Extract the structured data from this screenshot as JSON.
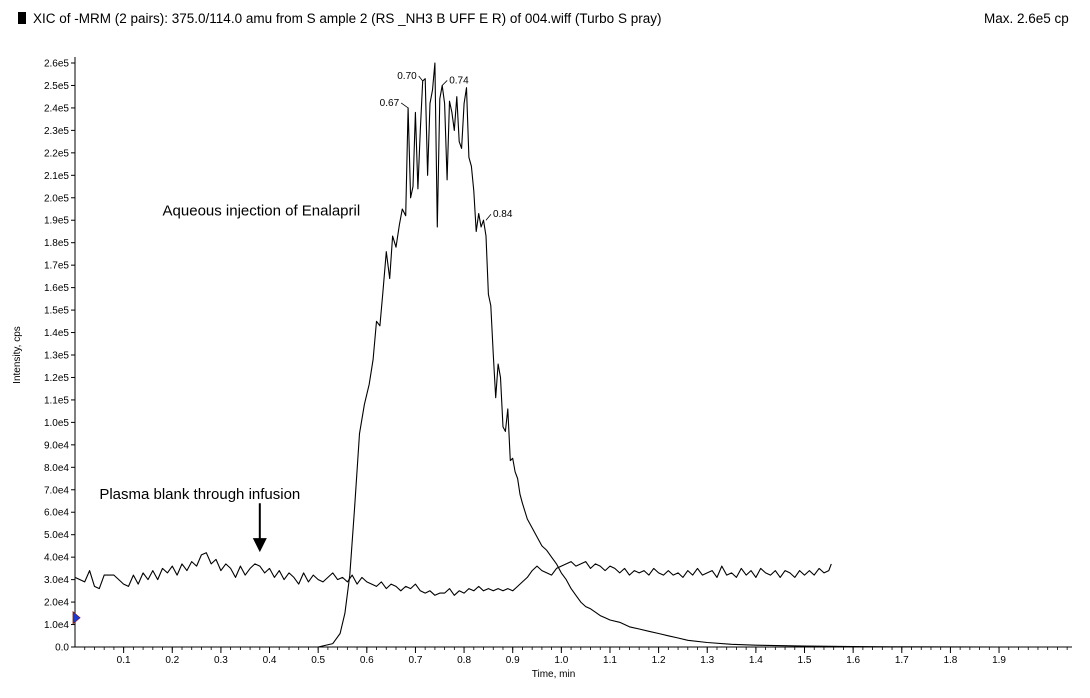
{
  "header": {
    "title": "XIC of -MRM (2 pairs): 375.0/114.0 amu from S ample 2 (RS _NH3 B UFF E R) of 004.wiff (Turbo S pray)",
    "max_label": "Max. 2.6e5 cp"
  },
  "chart_data": {
    "type": "line",
    "title": "XIC of -MRM (2 pairs): 375.0/114.0 amu from S ample 2 (RS _NH3 B UFF E R) of 004.wiff (Turbo S pray)",
    "xlabel": "Time, min",
    "ylabel": "Intensity, cps",
    "xlim": [
      0,
      2.05
    ],
    "ylim": [
      0,
      260000
    ],
    "grid": false,
    "x_ticks": [
      "0.1",
      "0.2",
      "0.3",
      "0.4",
      "0.5",
      "0.6",
      "0.7",
      "0.8",
      "0.9",
      "1.0",
      "1.1",
      "1.2",
      "1.3",
      "1.4",
      "1.5",
      "1.6",
      "1.7",
      "1.8",
      "1.9"
    ],
    "y_ticks": [
      "0.0",
      "1.0e4",
      "2.0e4",
      "3.0e4",
      "4.0e4",
      "5.0e4",
      "6.0e4",
      "7.0e4",
      "8.0e4",
      "9.0e4",
      "1.0e5",
      "1.1e5",
      "1.2e5",
      "1.3e5",
      "1.4e5",
      "1.5e5",
      "1.6e5",
      "1.7e5",
      "1.8e5",
      "1.9e5",
      "2.0e5",
      "2.1e5",
      "2.2e5",
      "2.3e5",
      "2.4e5",
      "2.5e5",
      "2.6e5"
    ],
    "series": [
      {
        "points": [
          [
            0,
            0
          ],
          [
            0.3,
            0
          ],
          [
            0.5,
            0
          ],
          [
            0.53,
            1500
          ],
          [
            0.545,
            6000
          ],
          [
            0.555,
            15000
          ],
          [
            0.565,
            32000
          ],
          [
            0.575,
            62000
          ],
          [
            0.585,
            95000
          ],
          [
            0.595,
            108000
          ],
          [
            0.605,
            117000
          ],
          [
            0.613,
            128000
          ],
          [
            0.62,
            145000
          ],
          [
            0.627,
            143000
          ],
          [
            0.633,
            158000
          ],
          [
            0.64,
            176000
          ],
          [
            0.647,
            164000
          ],
          [
            0.653,
            183000
          ],
          [
            0.66,
            178000
          ],
          [
            0.667,
            188000
          ],
          [
            0.673,
            195000
          ],
          [
            0.68,
            192000
          ],
          [
            0.685,
            240000
          ],
          [
            0.69,
            200000
          ],
          [
            0.695,
            205000
          ],
          [
            0.7,
            238000
          ],
          [
            0.705,
            204000
          ],
          [
            0.71,
            230000
          ],
          [
            0.715,
            252000
          ],
          [
            0.72,
            253000
          ],
          [
            0.725,
            210000
          ],
          [
            0.73,
            242000
          ],
          [
            0.735,
            248000
          ],
          [
            0.74,
            260000
          ],
          [
            0.745,
            187000
          ],
          [
            0.75,
            244000
          ],
          [
            0.755,
            250000
          ],
          [
            0.76,
            242000
          ],
          [
            0.765,
            208000
          ],
          [
            0.77,
            243000
          ],
          [
            0.775,
            238000
          ],
          [
            0.78,
            230000
          ],
          [
            0.785,
            245000
          ],
          [
            0.79,
            225000
          ],
          [
            0.795,
            222000
          ],
          [
            0.8,
            242000
          ],
          [
            0.805,
            249000
          ],
          [
            0.81,
            218000
          ],
          [
            0.815,
            214000
          ],
          [
            0.82,
            203000
          ],
          [
            0.825,
            185000
          ],
          [
            0.83,
            193000
          ],
          [
            0.835,
            187000
          ],
          [
            0.84,
            190000
          ],
          [
            0.845,
            183000
          ],
          [
            0.85,
            157000
          ],
          [
            0.855,
            152000
          ],
          [
            0.86,
            130000
          ],
          [
            0.865,
            111000
          ],
          [
            0.87,
            126000
          ],
          [
            0.875,
            120000
          ],
          [
            0.88,
            98000
          ],
          [
            0.885,
            96000
          ],
          [
            0.89,
            106000
          ],
          [
            0.895,
            83000
          ],
          [
            0.9,
            84000
          ],
          [
            0.905,
            78000
          ],
          [
            0.91,
            75000
          ],
          [
            0.915,
            68000
          ],
          [
            0.92,
            64000
          ],
          [
            0.93,
            57000
          ],
          [
            0.94,
            53000
          ],
          [
            0.95,
            49000
          ],
          [
            0.96,
            45000
          ],
          [
            0.97,
            43000
          ],
          [
            0.98,
            40000
          ],
          [
            0.99,
            37000
          ],
          [
            1.0,
            33000
          ],
          [
            1.01,
            30000
          ],
          [
            1.02,
            26000
          ],
          [
            1.03,
            23000
          ],
          [
            1.04,
            20000
          ],
          [
            1.05,
            18000
          ],
          [
            1.06,
            17000
          ],
          [
            1.07,
            15500
          ],
          [
            1.08,
            14000
          ],
          [
            1.09,
            13000
          ],
          [
            1.1,
            12000
          ],
          [
            1.12,
            11000
          ],
          [
            1.14,
            9000
          ],
          [
            1.16,
            8000
          ],
          [
            1.18,
            7000
          ],
          [
            1.2,
            6000
          ],
          [
            1.22,
            5000
          ],
          [
            1.24,
            4000
          ],
          [
            1.26,
            3000
          ],
          [
            1.3,
            2000
          ],
          [
            1.35,
            1200
          ],
          [
            1.4,
            800
          ],
          [
            1.5,
            400
          ],
          [
            1.6,
            200
          ],
          [
            1.7,
            100
          ],
          [
            1.8,
            50
          ],
          [
            1.9,
            0
          ],
          [
            2.0,
            0
          ]
        ]
      },
      {
        "points": [
          [
            0,
            31000
          ],
          [
            0.01,
            30000
          ],
          [
            0.02,
            29000
          ],
          [
            0.03,
            34000
          ],
          [
            0.04,
            27000
          ],
          [
            0.05,
            26000
          ],
          [
            0.06,
            32000
          ],
          [
            0.08,
            32000
          ],
          [
            0.1,
            28000
          ],
          [
            0.11,
            27000
          ],
          [
            0.12,
            32000
          ],
          [
            0.13,
            28000
          ],
          [
            0.14,
            33000
          ],
          [
            0.15,
            30000
          ],
          [
            0.16,
            34000
          ],
          [
            0.17,
            30000
          ],
          [
            0.18,
            35000
          ],
          [
            0.19,
            33000
          ],
          [
            0.2,
            36000
          ],
          [
            0.21,
            32000
          ],
          [
            0.22,
            37000
          ],
          [
            0.23,
            34000
          ],
          [
            0.24,
            38000
          ],
          [
            0.25,
            36000
          ],
          [
            0.26,
            41000
          ],
          [
            0.27,
            42000
          ],
          [
            0.28,
            37000
          ],
          [
            0.29,
            39000
          ],
          [
            0.3,
            34000
          ],
          [
            0.31,
            37000
          ],
          [
            0.32,
            35000
          ],
          [
            0.33,
            31000
          ],
          [
            0.34,
            36000
          ],
          [
            0.35,
            32000
          ],
          [
            0.36,
            35000
          ],
          [
            0.37,
            37000
          ],
          [
            0.38,
            36000
          ],
          [
            0.39,
            33000
          ],
          [
            0.4,
            35000
          ],
          [
            0.41,
            31000
          ],
          [
            0.42,
            34000
          ],
          [
            0.43,
            30000
          ],
          [
            0.44,
            33000
          ],
          [
            0.45,
            31000
          ],
          [
            0.46,
            28000
          ],
          [
            0.47,
            33000
          ],
          [
            0.48,
            29000
          ],
          [
            0.49,
            32000
          ],
          [
            0.5,
            30000
          ],
          [
            0.51,
            29000
          ],
          [
            0.52,
            31000
          ],
          [
            0.53,
            33000
          ],
          [
            0.54,
            30000
          ],
          [
            0.55,
            31000
          ],
          [
            0.56,
            29000
          ],
          [
            0.57,
            32000
          ],
          [
            0.58,
            28000
          ],
          [
            0.59,
            31000
          ],
          [
            0.6,
            29000
          ],
          [
            0.61,
            28000
          ],
          [
            0.62,
            27000
          ],
          [
            0.63,
            29000
          ],
          [
            0.64,
            26000
          ],
          [
            0.65,
            28000
          ],
          [
            0.66,
            27000
          ],
          [
            0.67,
            25000
          ],
          [
            0.68,
            27000
          ],
          [
            0.69,
            26000
          ],
          [
            0.7,
            28000
          ],
          [
            0.71,
            25000
          ],
          [
            0.72,
            24000
          ],
          [
            0.73,
            25000
          ],
          [
            0.74,
            23000
          ],
          [
            0.75,
            24000
          ],
          [
            0.76,
            24000
          ],
          [
            0.77,
            26000
          ],
          [
            0.78,
            23000
          ],
          [
            0.79,
            25000
          ],
          [
            0.8,
            24000
          ],
          [
            0.81,
            26000
          ],
          [
            0.82,
            25000
          ],
          [
            0.83,
            27000
          ],
          [
            0.84,
            25000
          ],
          [
            0.85,
            26000
          ],
          [
            0.86,
            25000
          ],
          [
            0.87,
            26000
          ],
          [
            0.88,
            25000
          ],
          [
            0.89,
            26000
          ],
          [
            0.9,
            25000
          ],
          [
            0.91,
            27000
          ],
          [
            0.92,
            29000
          ],
          [
            0.93,
            31000
          ],
          [
            0.94,
            34000
          ],
          [
            0.95,
            36000
          ],
          [
            0.96,
            34000
          ],
          [
            0.97,
            33000
          ],
          [
            0.98,
            32000
          ],
          [
            0.99,
            35000
          ],
          [
            1.0,
            36000
          ],
          [
            1.01,
            37000
          ],
          [
            1.02,
            38000
          ],
          [
            1.03,
            36000
          ],
          [
            1.04,
            37000
          ],
          [
            1.05,
            38000
          ],
          [
            1.06,
            35000
          ],
          [
            1.07,
            37000
          ],
          [
            1.08,
            36000
          ],
          [
            1.09,
            34000
          ],
          [
            1.1,
            36000
          ],
          [
            1.11,
            35000
          ],
          [
            1.12,
            33000
          ],
          [
            1.13,
            35000
          ],
          [
            1.14,
            32000
          ],
          [
            1.15,
            34000
          ],
          [
            1.16,
            33000
          ],
          [
            1.17,
            34000
          ],
          [
            1.18,
            32000
          ],
          [
            1.19,
            35000
          ],
          [
            1.2,
            33000
          ],
          [
            1.21,
            32000
          ],
          [
            1.22,
            34000
          ],
          [
            1.23,
            32000
          ],
          [
            1.24,
            33000
          ],
          [
            1.25,
            31000
          ],
          [
            1.26,
            34000
          ],
          [
            1.27,
            32000
          ],
          [
            1.28,
            35000
          ],
          [
            1.29,
            32000
          ],
          [
            1.3,
            33000
          ],
          [
            1.31,
            34000
          ],
          [
            1.32,
            31000
          ],
          [
            1.33,
            36000
          ],
          [
            1.34,
            32000
          ],
          [
            1.35,
            33000
          ],
          [
            1.36,
            31000
          ],
          [
            1.37,
            35000
          ],
          [
            1.38,
            32000
          ],
          [
            1.39,
            34000
          ],
          [
            1.4,
            31000
          ],
          [
            1.41,
            35000
          ],
          [
            1.42,
            33000
          ],
          [
            1.43,
            32000
          ],
          [
            1.44,
            34000
          ],
          [
            1.45,
            31000
          ],
          [
            1.46,
            34000
          ],
          [
            1.47,
            33000
          ],
          [
            1.48,
            31000
          ],
          [
            1.49,
            34000
          ],
          [
            1.5,
            32000
          ],
          [
            1.51,
            34000
          ],
          [
            1.52,
            32000
          ],
          [
            1.53,
            35000
          ],
          [
            1.54,
            33000
          ],
          [
            1.55,
            34000
          ],
          [
            1.555,
            37000
          ]
        ]
      }
    ],
    "peak_labels": [
      {
        "text": "0.67",
        "x": 0.685,
        "y": 240000
      },
      {
        "text": "0.70",
        "x": 0.715,
        "y": 252000
      },
      {
        "text": "0.74",
        "x": 0.755,
        "y": 250000
      },
      {
        "text": "0.84",
        "x": 0.845,
        "y": 190000
      }
    ],
    "annotations": [
      {
        "text": "Aqueous injection of Enalapril",
        "x": 0.18,
        "y": 192000
      },
      {
        "text": "Plasma blank through infusion",
        "x": 0.05,
        "y": 66000
      }
    ],
    "arrow": {
      "x": 0.38,
      "y_from": 64000,
      "y_to": 44000
    },
    "colors": {
      "line": "#000000",
      "marker": "#1a3bd6",
      "marker_edge": "#7a1a1a",
      "background": "#ffffff"
    }
  }
}
